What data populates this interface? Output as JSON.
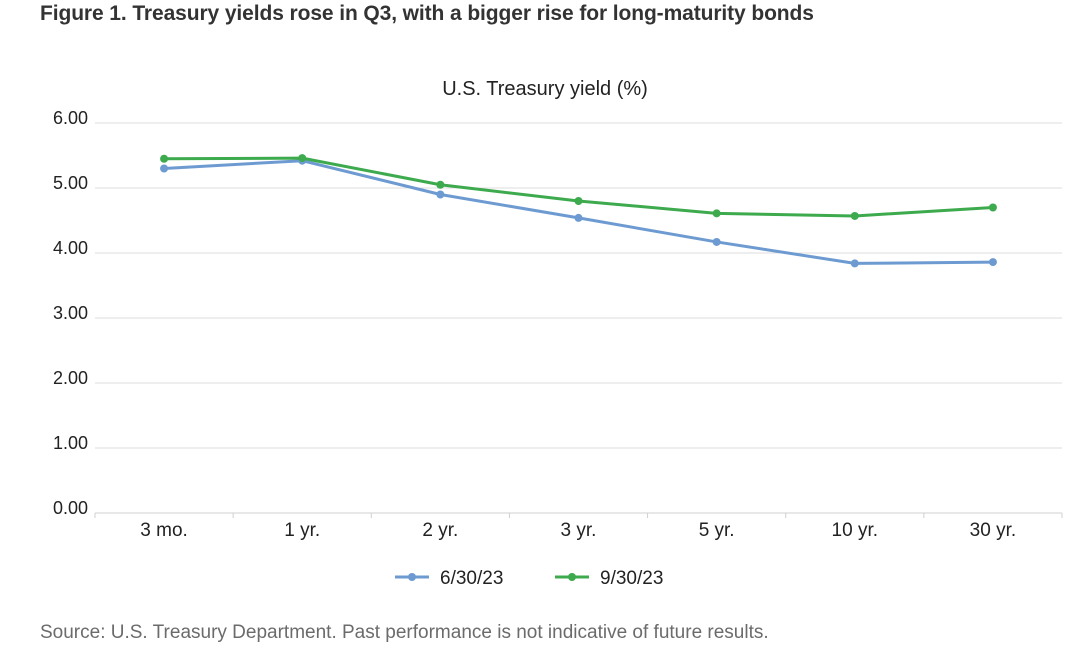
{
  "figure": {
    "title": "Figure 1. Treasury yields rose in Q3, with a bigger rise for long-maturity bonds",
    "source": "Source: U.S. Treasury Department. Past performance is not indicative of future results."
  },
  "chart_data": {
    "type": "line",
    "title": "U.S. Treasury yield (%)",
    "xlabel": "",
    "ylabel": "",
    "categories": [
      "3 mo.",
      "1 yr.",
      "2 yr.",
      "3 yr.",
      "5 yr.",
      "10 yr.",
      "30 yr."
    ],
    "ylim": [
      0,
      6
    ],
    "yticks": [
      "0.00",
      "1.00",
      "2.00",
      "3.00",
      "4.00",
      "5.00",
      "6.00"
    ],
    "grid": true,
    "legend_position": "bottom",
    "series": [
      {
        "name": "6/30/23",
        "color": "#6d9bd1",
        "values": [
          5.3,
          5.42,
          4.9,
          4.54,
          4.17,
          3.84,
          3.86
        ]
      },
      {
        "name": "9/30/23",
        "color": "#3daa4d",
        "values": [
          5.45,
          5.46,
          5.05,
          4.8,
          4.61,
          4.57,
          4.7
        ]
      }
    ]
  }
}
